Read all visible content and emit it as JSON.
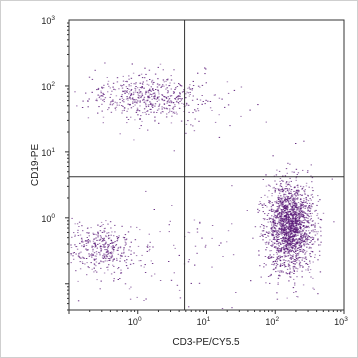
{
  "chart_data": {
    "type": "scatter",
    "title": "",
    "xlabel": "CD3-PE/CY5.5",
    "ylabel": "CD19-PE",
    "x_scale": "log",
    "y_scale": "log",
    "xlim": [
      0.1,
      1000
    ],
    "ylim": [
      0.04,
      1000
    ],
    "x_ticks": [
      {
        "base": "10",
        "exp": "0",
        "value": 1
      },
      {
        "base": "10",
        "exp": "1",
        "value": 10
      },
      {
        "base": "10",
        "exp": "2",
        "value": 100
      },
      {
        "base": "10",
        "exp": "3",
        "value": 1000
      }
    ],
    "y_ticks": [
      {
        "base": "10",
        "exp": "0",
        "value": 1
      },
      {
        "base": "10",
        "exp": "1",
        "value": 10
      },
      {
        "base": "10",
        "exp": "2",
        "value": 100
      },
      {
        "base": "10",
        "exp": "3",
        "value": 1000
      }
    ],
    "quadrant_gates": {
      "x": 4.8,
      "y": 4.2
    },
    "grid": false,
    "point_color": "#5a1a78",
    "populations": [
      {
        "center": [
          1.4,
          70
        ],
        "spread_log": [
          0.42,
          0.17
        ],
        "count": 520
      },
      {
        "center": [
          0.28,
          0.35
        ],
        "spread_log": [
          0.28,
          0.18
        ],
        "count": 380
      },
      {
        "center": [
          160,
          0.75
        ],
        "spread_log": [
          0.17,
          0.33
        ],
        "count": 1900
      },
      {
        "center": [
          8,
          60
        ],
        "spread_log": [
          0.6,
          0.35
        ],
        "count": 40
      },
      {
        "center": [
          2,
          0.3
        ],
        "spread_log": [
          0.7,
          0.5
        ],
        "count": 110
      }
    ]
  }
}
